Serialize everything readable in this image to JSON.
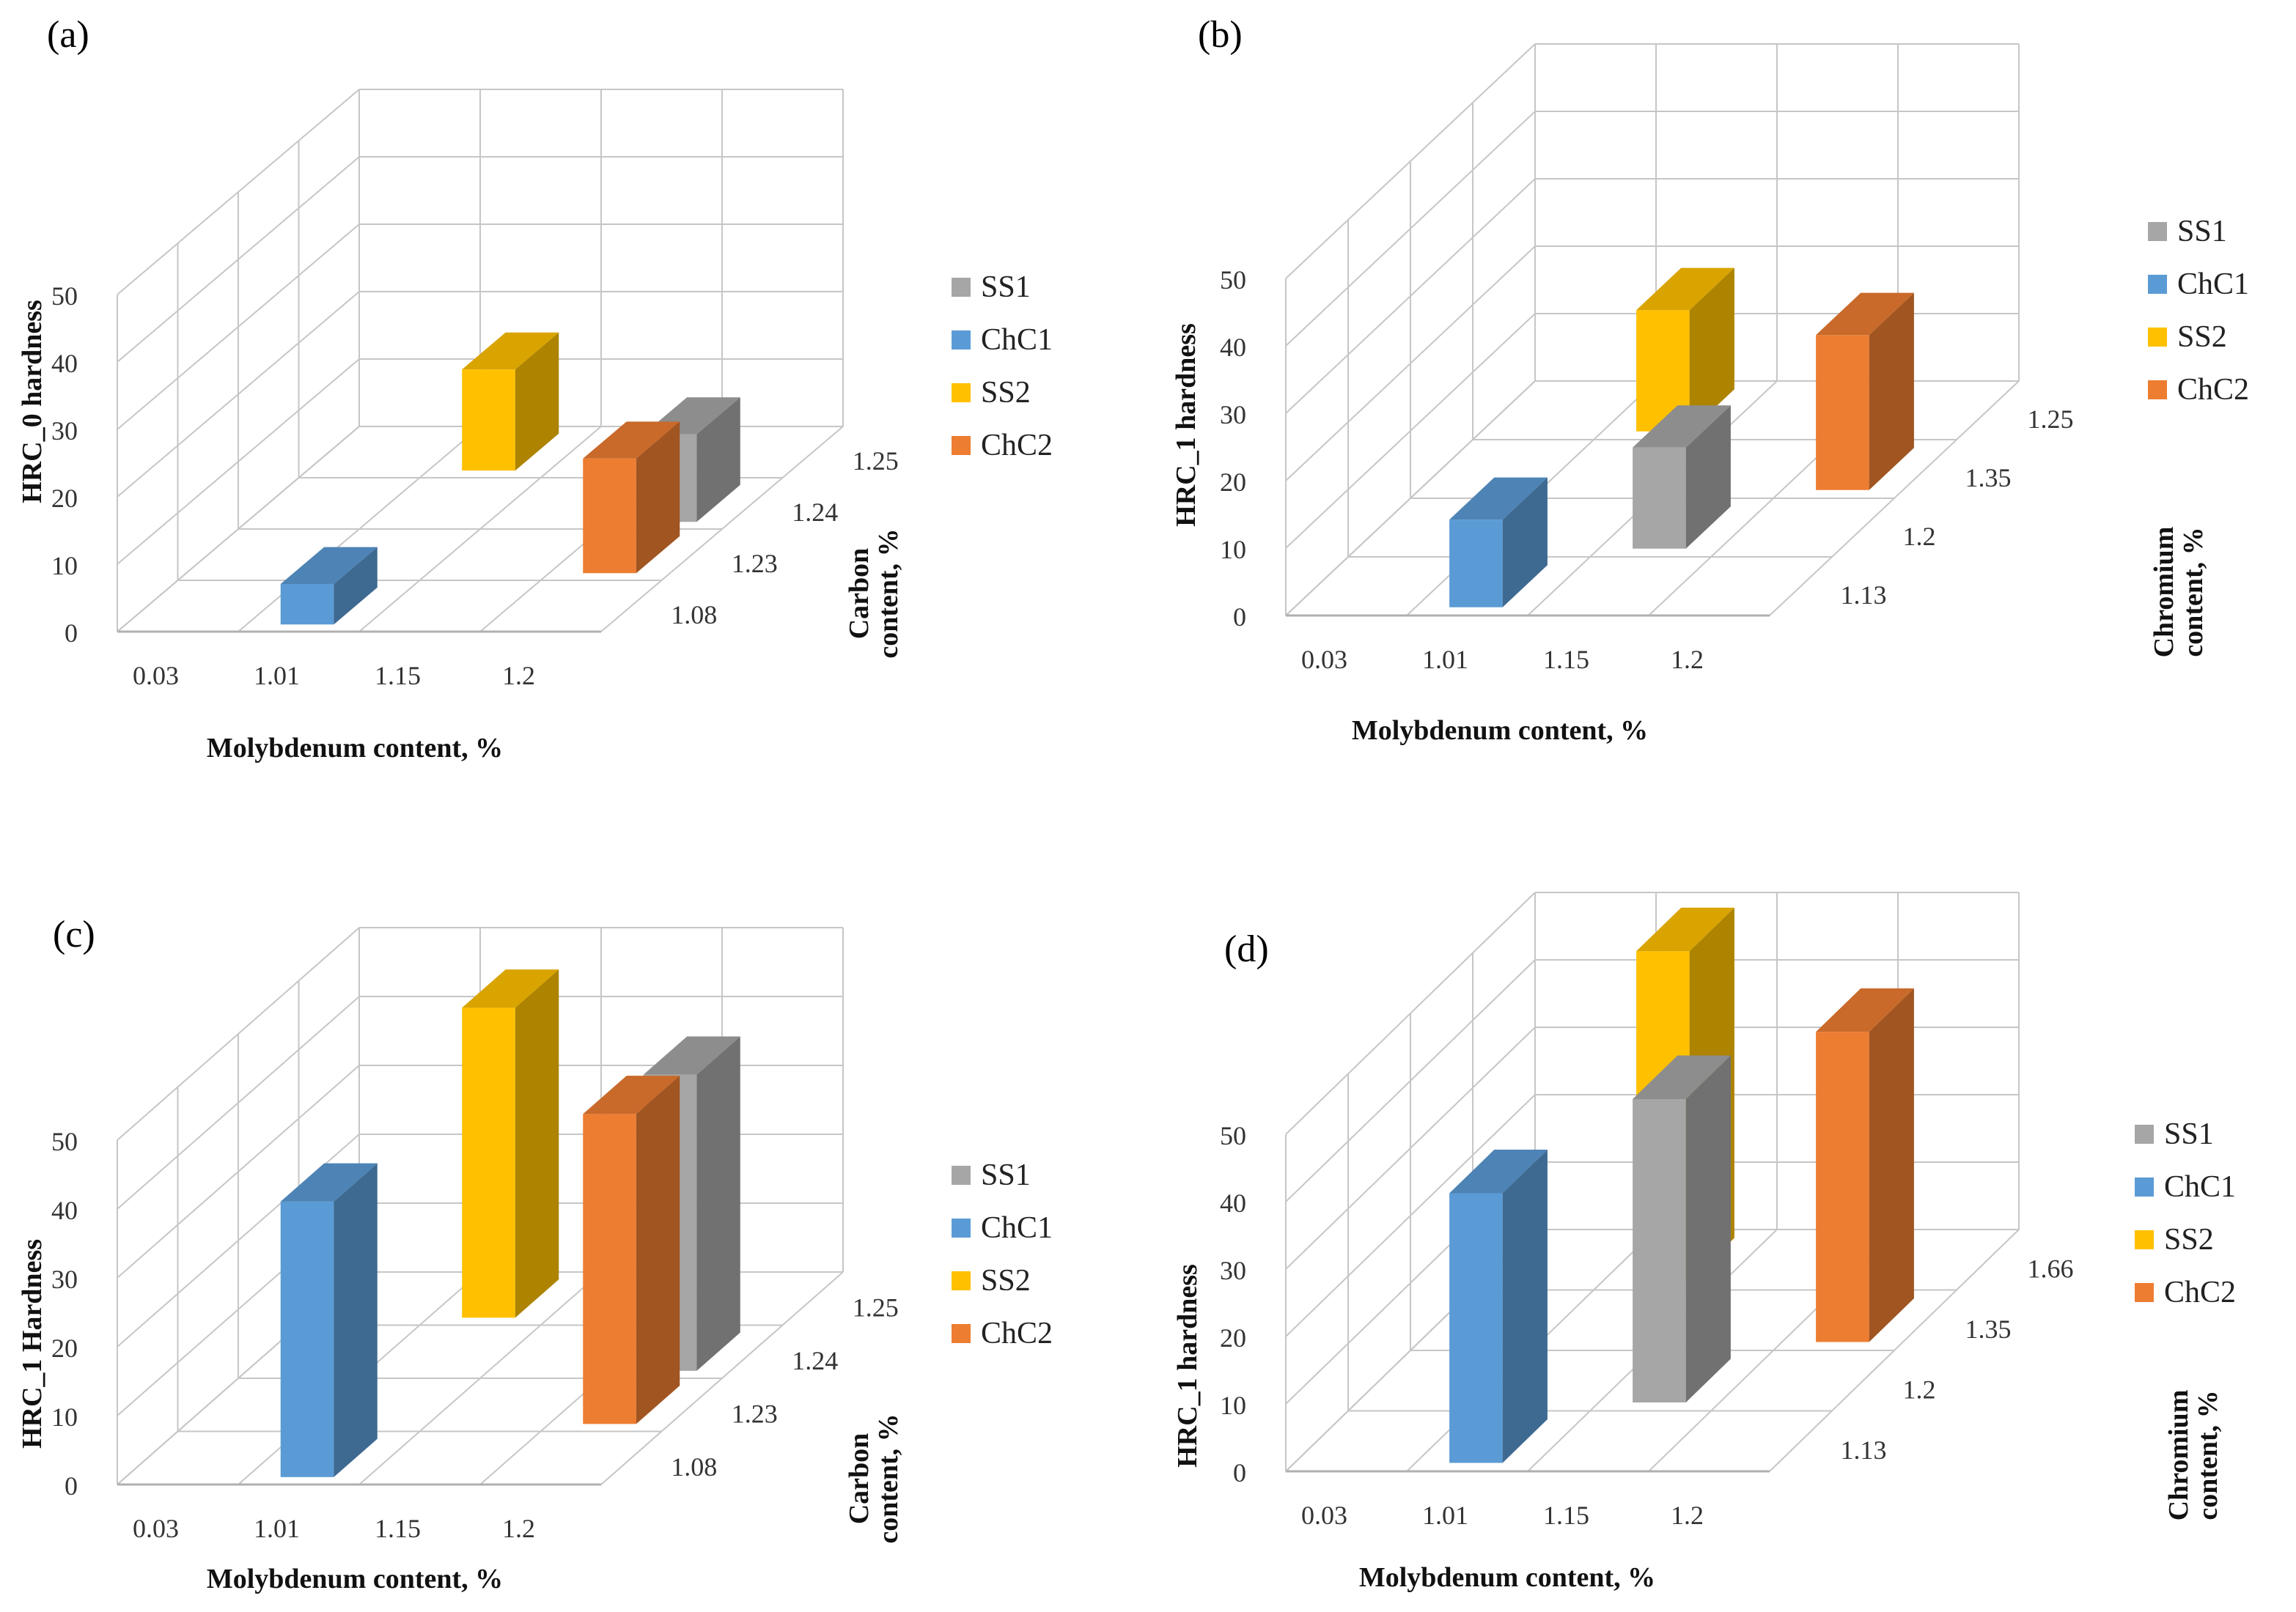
{
  "figure": {
    "colors": {
      "SS1": "#a6a6a6",
      "ChC1": "#5b9bd5",
      "SS2": "#ffc000",
      "ChC2": "#ed7d31"
    }
  },
  "chart_data": [
    {
      "panel_label": "(a)",
      "type": "bar",
      "subtype": "3d-column",
      "ylabel": "HRC_0 hardness",
      "xlabel": "Molybdenum content, %",
      "zlabel": "Carbon content, %",
      "zlabel_lines": [
        "Carbon",
        "content, %"
      ],
      "y_ticks": [
        "0",
        "10",
        "20",
        "30",
        "40",
        "50"
      ],
      "ylim": [
        0,
        50
      ],
      "x_categories": [
        "0.03",
        "1.01",
        "1.15",
        "1.2"
      ],
      "z_categories": [
        "1.08",
        "1.23",
        "1.24",
        "1.25"
      ],
      "legend": [
        "SS1",
        "ChC1",
        "SS2",
        "ChC2"
      ],
      "series": [
        {
          "name": "ChC1",
          "molybdenum": "1.01",
          "carbon": "1.08",
          "value": 6
        },
        {
          "name": "SS2",
          "molybdenum": "1.01",
          "carbon": "1.25",
          "value": 15
        },
        {
          "name": "SS1",
          "molybdenum": "1.2",
          "carbon": "1.24",
          "value": 13
        },
        {
          "name": "ChC2",
          "molybdenum": "1.2",
          "carbon": "1.23",
          "value": 17
        }
      ]
    },
    {
      "panel_label": "(b)",
      "type": "bar",
      "subtype": "3d-column",
      "ylabel": "HRC_1 hardness",
      "xlabel": "Molybdenum content, %",
      "zlabel": "Chromium content, %",
      "zlabel_lines": [
        "Chromium",
        "content, %"
      ],
      "y_ticks": [
        "0",
        "10",
        "20",
        "30",
        "40",
        "50"
      ],
      "ylim": [
        0,
        50
      ],
      "x_categories": [
        "0.03",
        "1.01",
        "1.15",
        "1.2"
      ],
      "z_categories": [
        "1.13",
        "1.2",
        "1.35",
        "1.25"
      ],
      "legend": [
        "SS1",
        "ChC1",
        "SS2",
        "ChC2"
      ],
      "series": [
        {
          "name": "ChC1",
          "molybdenum": "1.01",
          "chromium": "1.13",
          "value": 13
        },
        {
          "name": "SS2",
          "molybdenum": "1.01",
          "chromium": "1.25",
          "value": 18
        },
        {
          "name": "SS1",
          "molybdenum": "1.15",
          "chromium": "1.2",
          "value": 15
        },
        {
          "name": "ChC2",
          "molybdenum": "1.2",
          "chromium": "1.35",
          "value": 23
        }
      ]
    },
    {
      "panel_label": "(c)",
      "type": "bar",
      "subtype": "3d-column",
      "ylabel": "HRC_1 Hardness",
      "xlabel": "Molybdenum content, %",
      "zlabel": "Carbon content, %",
      "zlabel_lines": [
        "Carbon",
        "content, %"
      ],
      "y_ticks": [
        "0",
        "10",
        "20",
        "30",
        "40",
        "50"
      ],
      "ylim": [
        0,
        50
      ],
      "x_categories": [
        "0.03",
        "1.01",
        "1.15",
        "1.2"
      ],
      "z_categories": [
        "1.08",
        "1.23",
        "1.24",
        "1.25"
      ],
      "legend": [
        "SS1",
        "ChC1",
        "SS2",
        "ChC2"
      ],
      "series": [
        {
          "name": "ChC1",
          "molybdenum": "1.01",
          "carbon": "1.08",
          "value": 40
        },
        {
          "name": "SS2",
          "molybdenum": "1.01",
          "carbon": "1.25",
          "value": 45
        },
        {
          "name": "SS1",
          "molybdenum": "1.2",
          "carbon": "1.24",
          "value": 43
        },
        {
          "name": "ChC2",
          "molybdenum": "1.2",
          "carbon": "1.23",
          "value": 45
        }
      ]
    },
    {
      "panel_label": "(d)",
      "type": "bar",
      "subtype": "3d-column",
      "ylabel": "HRC_1 hardness",
      "xlabel": "Molybdenum content, %",
      "zlabel": "Chromium content, %",
      "zlabel_lines": [
        "Chromium",
        "content, %"
      ],
      "y_ticks": [
        "0",
        "10",
        "20",
        "30",
        "40",
        "50"
      ],
      "ylim": [
        0,
        50
      ],
      "x_categories": [
        "0.03",
        "1.01",
        "1.15",
        "1.2"
      ],
      "z_categories": [
        "1.13",
        "1.2",
        "1.35",
        "1.66"
      ],
      "legend": [
        "SS1",
        "ChC1",
        "SS2",
        "ChC2"
      ],
      "series": [
        {
          "name": "ChC1",
          "molybdenum": "1.01",
          "chromium": "1.13",
          "value": 40
        },
        {
          "name": "SS2",
          "molybdenum": "1.01",
          "chromium": "1.66",
          "value": 49
        },
        {
          "name": "SS1",
          "molybdenum": "1.15",
          "chromium": "1.2",
          "value": 45
        },
        {
          "name": "ChC2",
          "molybdenum": "1.2",
          "chromium": "1.35",
          "value": 46
        }
      ]
    }
  ]
}
